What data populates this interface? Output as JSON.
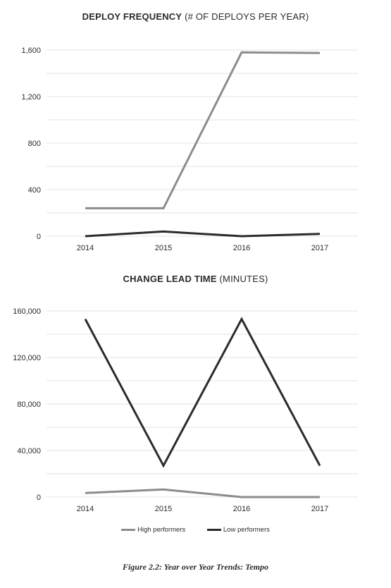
{
  "colors": {
    "high": "#8c8c8c",
    "low": "#2b2b2b",
    "grid": "#e3e3e3"
  },
  "chart_data": [
    {
      "type": "line",
      "title_bold": "DEPLOY FREQUENCY",
      "title_rest": "(# OF DEPLOYS PER YEAR)",
      "x": [
        "2014",
        "2015",
        "2016",
        "2017"
      ],
      "ylim": [
        0,
        1600
      ],
      "yticks": [
        0,
        400,
        800,
        1200,
        1600
      ],
      "ytick_labels": [
        "0",
        "400",
        "800",
        "1,200",
        "1,600"
      ],
      "grid": true,
      "series": [
        {
          "name": "High performers",
          "key": "high",
          "values": [
            240,
            240,
            1580,
            1575
          ]
        },
        {
          "name": "Low performers",
          "key": "low",
          "values": [
            0,
            40,
            0,
            20
          ]
        }
      ]
    },
    {
      "type": "line",
      "title_bold": "CHANGE LEAD TIME",
      "title_rest": "(MINUTES)",
      "x": [
        "2014",
        "2015",
        "2016",
        "2017"
      ],
      "ylim": [
        0,
        160000
      ],
      "yticks": [
        0,
        40000,
        80000,
        120000,
        160000
      ],
      "ytick_labels": [
        "0",
        "40,000",
        "80,000",
        "120,000",
        "160,000"
      ],
      "grid": true,
      "series": [
        {
          "name": "High performers",
          "key": "high",
          "values": [
            3500,
            6500,
            0,
            0
          ]
        },
        {
          "name": "Low performers",
          "key": "low",
          "values": [
            153000,
            27000,
            153000,
            27000
          ]
        }
      ]
    }
  ],
  "legend": {
    "high_label": "High performers",
    "low_label": "Low performers",
    "position": "bottom"
  },
  "caption": "Figure 2.2: Year over Year Trends: Tempo"
}
